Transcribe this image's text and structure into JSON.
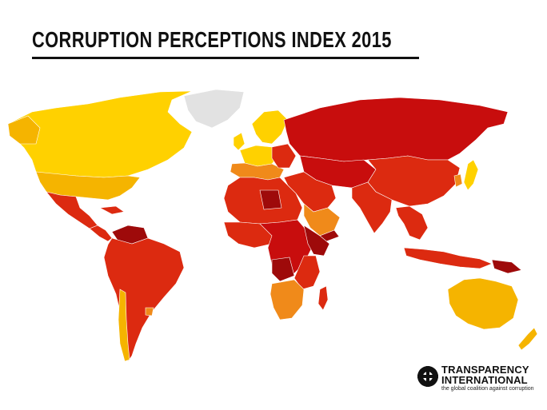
{
  "header": {
    "title": "CORRUPTION PERCEPTIONS INDEX 2015"
  },
  "map": {
    "colors": {
      "very_clean": "#ffd100",
      "clean": "#f5b400",
      "moderate": "#f08a1a",
      "medium": "#e8501a",
      "corrupt": "#dc2a10",
      "highly_corrupt": "#c80d0d",
      "very_highly_corrupt": "#9e0a0a",
      "no_data": "#e2e2e2"
    }
  },
  "logo": {
    "line1": "TRANSPARENCY",
    "line2": "INTERNATIONAL",
    "tagline": "the global coalition against corruption"
  }
}
